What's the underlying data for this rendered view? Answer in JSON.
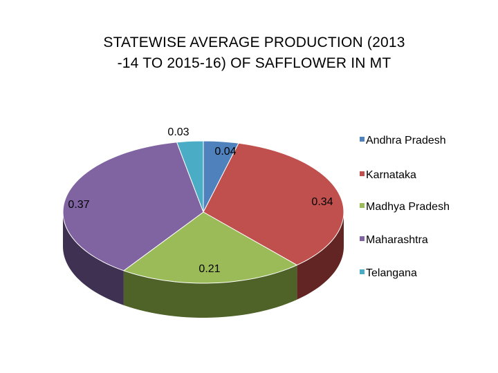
{
  "chart_data": {
    "type": "pie",
    "title": "STATEWISE AVERAGE PRODUCTION (2013 -14 TO 2015-16) OF SAFFLOWER IN MT",
    "title_lines": [
      "STATEWISE AVERAGE PRODUCTION (2013",
      "-14 TO 2015-16) OF SAFFLOWER IN MT"
    ],
    "categories": [
      "Andhra Pradesh",
      "Karnataka",
      "Madhya Pradesh",
      "Maharashtra",
      "Telangana"
    ],
    "values": [
      0.04,
      0.34,
      0.21,
      0.37,
      0.03
    ],
    "data_labels": [
      "0.04",
      "0.34",
      "0.21",
      "0.37",
      "0.03"
    ],
    "colors": [
      "#4F81BD",
      "#C0504D",
      "#9BBB59",
      "#8064A2",
      "#4BACC6"
    ],
    "side_colors": [
      "#2E4A70",
      "#632523",
      "#4F6228",
      "#3F3151",
      "#215967"
    ],
    "style": "3d",
    "legend_position": "right"
  }
}
